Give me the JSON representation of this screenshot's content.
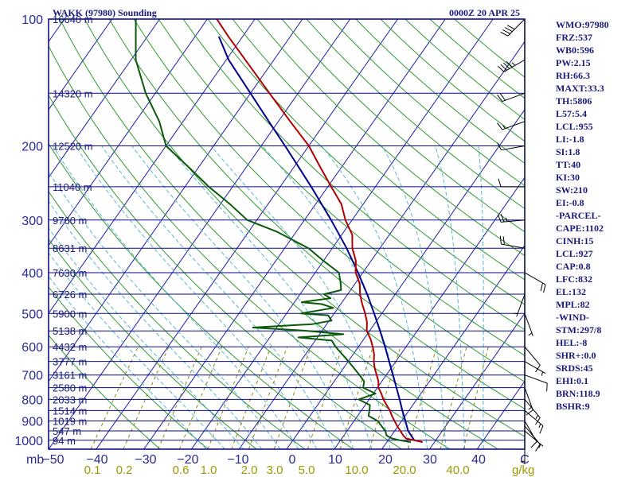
{
  "header": {
    "station": "WAKK (97980) Sounding",
    "time": "0000Z 20 APR 25"
  },
  "colors": {
    "frame": "#00008b",
    "isobar": "#0a0a8c",
    "isotherm": "#1c1caa",
    "dry_adiabat": "#2e9a2e",
    "moist_adiabat": "#58b8d0",
    "mixing_ratio": "#8a8a00",
    "temperature": "#b00000",
    "dewpoint": "#0a5a0a",
    "parcel": "#00008b",
    "label": "#1a1a7a"
  },
  "axes": {
    "mb_label": "mb",
    "mixing_ratio_unit": "g/kg",
    "pressure_ticks": [
      "100",
      "200",
      "300",
      "400",
      "500",
      "600",
      "700",
      "800",
      "900",
      "1000"
    ],
    "temperature_ticks": [
      "−50",
      "−40",
      "−30",
      "−20",
      "−10",
      "0",
      "10",
      "20",
      "30",
      "40",
      "C"
    ],
    "mixing_ratio_ticks": [
      "0.1",
      "0.2",
      "0.6",
      "1.0",
      "2.0",
      "3.0",
      "5.0",
      "10.0",
      "20.0",
      "40.0"
    ]
  },
  "chart_data": {
    "type": "line",
    "title": "WAKK (97980) Sounding",
    "subtitle": "0000Z 20 APR 25",
    "ylabel": "mb",
    "xlabel": "C",
    "yscale": "log",
    "ylim": [
      1050,
      100
    ],
    "xlim": [
      -50,
      50
    ],
    "grid": true,
    "heights": [
      {
        "p": 100,
        "label": "16640 m"
      },
      {
        "p": 150,
        "label": "14320 m"
      },
      {
        "p": 200,
        "label": "12520 m"
      },
      {
        "p": 250,
        "label": "11040 m"
      },
      {
        "p": 300,
        "label": "9760 m"
      },
      {
        "p": 350,
        "label": "8631 m"
      },
      {
        "p": 400,
        "label": "7630 m"
      },
      {
        "p": 450,
        "label": "6726 m"
      },
      {
        "p": 500,
        "label": "5900 m"
      },
      {
        "p": 550,
        "label": "5138 m"
      },
      {
        "p": 600,
        "label": "4432 m"
      },
      {
        "p": 650,
        "label": "3777 m"
      },
      {
        "p": 700,
        "label": "3161 m"
      },
      {
        "p": 750,
        "label": "2580 m"
      },
      {
        "p": 800,
        "label": "2033 m"
      },
      {
        "p": 850,
        "label": "1514 m"
      },
      {
        "p": 900,
        "label": "1019 m"
      },
      {
        "p": 950,
        "label": "547 m"
      },
      {
        "p": 1000,
        "label": "94 m"
      }
    ],
    "series": [
      {
        "points": [
          [
            1010,
            27.5
          ],
          [
            1000,
            25.5
          ],
          [
            990,
            23.5
          ],
          [
            975,
            22.5
          ],
          [
            950,
            21.2
          ],
          [
            925,
            19.8
          ],
          [
            900,
            18.5
          ],
          [
            875,
            17.2
          ],
          [
            850,
            16.0
          ],
          [
            825,
            14.5
          ],
          [
            800,
            13.0
          ],
          [
            775,
            11.7
          ],
          [
            750,
            10.2
          ],
          [
            725,
            9.3
          ],
          [
            700,
            8.0
          ],
          [
            675,
            6.6
          ],
          [
            650,
            5.4
          ],
          [
            625,
            4.4
          ],
          [
            600,
            3.0
          ],
          [
            575,
            1.4
          ],
          [
            550,
            -0.6
          ],
          [
            525,
            -1.8
          ],
          [
            500,
            -3.5
          ],
          [
            475,
            -5.5
          ],
          [
            450,
            -7.4
          ],
          [
            425,
            -9.0
          ],
          [
            400,
            -11.5
          ],
          [
            375,
            -13.2
          ],
          [
            350,
            -15.8
          ],
          [
            325,
            -17.8
          ],
          [
            300,
            -21.4
          ],
          [
            275,
            -24.6
          ],
          [
            250,
            -29.3
          ],
          [
            225,
            -34.4
          ],
          [
            200,
            -40.0
          ],
          [
            175,
            -47.5
          ],
          [
            150,
            -56.0
          ],
          [
            125,
            -66.0
          ],
          [
            110,
            -73.0
          ],
          [
            100,
            -78.0
          ]
        ]
      },
      {
        "points": [
          [
            1010,
            25.0
          ],
          [
            1000,
            22.5
          ],
          [
            990,
            20.5
          ],
          [
            975,
            19.0
          ],
          [
            950,
            18.0
          ],
          [
            925,
            16.5
          ],
          [
            900,
            15.0
          ],
          [
            875,
            12.3
          ],
          [
            850,
            11.7
          ],
          [
            825,
            11.0
          ],
          [
            800,
            7.8
          ],
          [
            775,
            10.5
          ],
          [
            750,
            7.0
          ],
          [
            725,
            6.3
          ],
          [
            700,
            4.4
          ],
          [
            650,
            0.1
          ],
          [
            600,
            -4.8
          ],
          [
            580,
            -6.5
          ],
          [
            570,
            -14.0
          ],
          [
            560,
            -5.0
          ],
          [
            550,
            -13.0
          ],
          [
            540,
            -25.0
          ],
          [
            530,
            -13.0
          ],
          [
            520,
            -9.5
          ],
          [
            505,
            -11.0
          ],
          [
            500,
            -17.0
          ],
          [
            485,
            -11.0
          ],
          [
            475,
            -14.0
          ],
          [
            470,
            -18.5
          ],
          [
            460,
            -13.0
          ],
          [
            450,
            -15.0
          ],
          [
            440,
            -12.0
          ],
          [
            425,
            -13.0
          ],
          [
            400,
            -15.0
          ],
          [
            375,
            -20.0
          ],
          [
            350,
            -25.0
          ],
          [
            320,
            -34.0
          ],
          [
            300,
            -42.0
          ],
          [
            275,
            -48.0
          ],
          [
            250,
            -55.0
          ],
          [
            225,
            -62.0
          ],
          [
            200,
            -70.0
          ],
          [
            175,
            -75.0
          ],
          [
            150,
            -82.0
          ],
          [
            125,
            -89.0
          ],
          [
            100,
            -95.0
          ]
        ]
      },
      {
        "points": [
          [
            1000,
            25.5
          ],
          [
            950,
            22.8
          ],
          [
            900,
            20.8
          ],
          [
            850,
            18.6
          ],
          [
            800,
            16.4
          ],
          [
            750,
            14.0
          ],
          [
            700,
            11.4
          ],
          [
            650,
            8.6
          ],
          [
            600,
            5.6
          ],
          [
            550,
            2.2
          ],
          [
            500,
            -1.6
          ],
          [
            450,
            -5.9
          ],
          [
            400,
            -11.0
          ],
          [
            350,
            -17.0
          ],
          [
            300,
            -24.4
          ],
          [
            250,
            -33.5
          ],
          [
            200,
            -45.0
          ],
          [
            175,
            -52.0
          ],
          [
            150,
            -60.0
          ],
          [
            125,
            -69.5
          ],
          [
            110,
            -75.0
          ]
        ]
      }
    ],
    "indices": [
      "WMO:97980",
      "FRZ:537",
      "WB0:596",
      "PW:2.15",
      "RH:66.3",
      "MAXT:33.3",
      "TH:5806",
      "L57:5.4",
      "LCL:955",
      "LI:-1.8",
      "SI:1.8",
      "TT:40",
      "KI:30",
      "SW:210",
      "EI:-0.8",
      "-PARCEL-",
      "CAPE:1102",
      "CINH:15",
      "LCL:927",
      "CAP:0.8",
      "LFC:832",
      "EL:132",
      "MPL:82",
      "-WIND-",
      "STM:297/8",
      "HEL:-8",
      "SHR+:0.0",
      "SRDS:45",
      "EHI:0.1",
      "BRN:118.9",
      "BSHR:9"
    ],
    "mixing_ratio_lines": [
      0.1,
      0.2,
      0.4,
      0.6,
      1.0,
      1.5,
      2.0,
      3.0,
      5.0,
      8.0,
      12.0,
      20.0,
      30.0,
      40.0
    ],
    "wind_barbs": [
      {
        "p": 100,
        "dir": 225,
        "spd": 40
      },
      {
        "p": 125,
        "dir": 240,
        "spd": 45
      },
      {
        "p": 150,
        "dir": 250,
        "spd": 20
      },
      {
        "p": 175,
        "dir": 250,
        "spd": 15
      },
      {
        "p": 200,
        "dir": 260,
        "spd": 10
      },
      {
        "p": 250,
        "dir": 270,
        "spd": 10
      },
      {
        "p": 300,
        "dir": 265,
        "spd": 25
      },
      {
        "p": 350,
        "dir": 280,
        "spd": 20
      },
      {
        "p": 400,
        "dir": 120,
        "spd": 20
      },
      {
        "p": 450,
        "dir": 200,
        "spd": 5
      },
      {
        "p": 500,
        "dir": 160,
        "spd": 5
      },
      {
        "p": 600,
        "dir": 140,
        "spd": 10
      },
      {
        "p": 650,
        "dir": 120,
        "spd": 5
      },
      {
        "p": 700,
        "dir": 110,
        "spd": 10
      },
      {
        "p": 750,
        "dir": 160,
        "spd": 15
      },
      {
        "p": 800,
        "dir": 140,
        "spd": 15
      },
      {
        "p": 850,
        "dir": 130,
        "spd": 15
      },
      {
        "p": 900,
        "dir": 150,
        "spd": 10
      },
      {
        "p": 925,
        "dir": 140,
        "spd": 10
      },
      {
        "p": 950,
        "dir": 130,
        "spd": 5
      },
      {
        "p": 1000,
        "dir": 180,
        "spd": 5
      }
    ]
  }
}
